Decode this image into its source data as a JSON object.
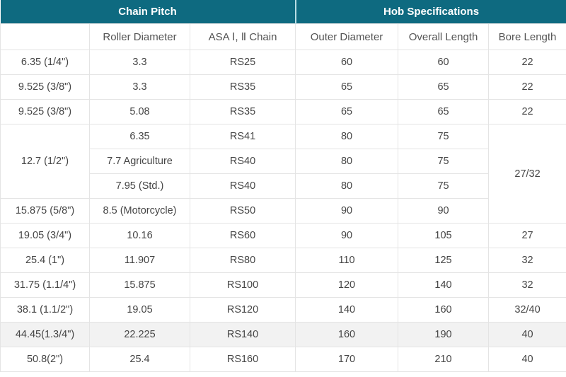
{
  "colors": {
    "header_bg": "#0e6a80",
    "header_text": "#ffffff",
    "header_divider": "#b9dde4",
    "grid_line": "#e4e4e4",
    "bottom_border": "#c9c9c9",
    "subheader_text": "#545454",
    "cell_text": "#454545",
    "highlight_row": "#f2f2f2"
  },
  "table": {
    "header_groups": [
      {
        "label": "Chain Pitch",
        "colspan": 3
      },
      {
        "label": "Hob Specifications",
        "colspan": 3
      }
    ],
    "columns": [
      "",
      "Roller Diameter",
      "ASA Ⅰ, Ⅱ Chain",
      "Outer Diameter",
      "Overall Length",
      "Bore Length"
    ],
    "rows": [
      {
        "cells": [
          {
            "t": "6.35 (1/4\")"
          },
          {
            "t": "3.3"
          },
          {
            "t": "RS25"
          },
          {
            "t": "60"
          },
          {
            "t": "60"
          },
          {
            "t": "22"
          }
        ]
      },
      {
        "cells": [
          {
            "t": "9.525 (3/8\")"
          },
          {
            "t": "3.3"
          },
          {
            "t": "RS35"
          },
          {
            "t": "65"
          },
          {
            "t": "65"
          },
          {
            "t": "22"
          }
        ]
      },
      {
        "cells": [
          {
            "t": "9.525 (3/8\")"
          },
          {
            "t": "5.08"
          },
          {
            "t": "RS35"
          },
          {
            "t": "65"
          },
          {
            "t": "65"
          },
          {
            "t": "22"
          }
        ]
      },
      {
        "cells": [
          {
            "t": "12.7 (1/2\")",
            "rowspan": 3
          },
          {
            "t": "6.35"
          },
          {
            "t": "RS41"
          },
          {
            "t": "80"
          },
          {
            "t": "75"
          },
          {
            "t": "27/32",
            "rowspan": 4
          }
        ]
      },
      {
        "cells": [
          {
            "t": "7.7 Agriculture"
          },
          {
            "t": "RS40"
          },
          {
            "t": "80"
          },
          {
            "t": "75"
          }
        ]
      },
      {
        "cells": [
          {
            "t": "7.95 (Std.)"
          },
          {
            "t": "RS40"
          },
          {
            "t": "80"
          },
          {
            "t": "75"
          }
        ]
      },
      {
        "cells": [
          {
            "t": "15.875 (5/8\")"
          },
          {
            "t": "8.5 (Motorcycle)"
          },
          {
            "t": "RS50"
          },
          {
            "t": "90"
          },
          {
            "t": "90"
          }
        ]
      },
      {
        "cells": [
          {
            "t": "19.05 (3/4\")"
          },
          {
            "t": "10.16"
          },
          {
            "t": "RS60"
          },
          {
            "t": "90"
          },
          {
            "t": "105"
          },
          {
            "t": "27"
          }
        ]
      },
      {
        "cells": [
          {
            "t": "25.4 (1\")"
          },
          {
            "t": "11.907"
          },
          {
            "t": "RS80"
          },
          {
            "t": "110"
          },
          {
            "t": "125"
          },
          {
            "t": "32"
          }
        ]
      },
      {
        "cells": [
          {
            "t": "31.75 (1.1/4\")"
          },
          {
            "t": "15.875"
          },
          {
            "t": "RS100"
          },
          {
            "t": "120"
          },
          {
            "t": "140"
          },
          {
            "t": "32"
          }
        ]
      },
      {
        "cells": [
          {
            "t": "38.1 (1.1/2\")"
          },
          {
            "t": "19.05"
          },
          {
            "t": "RS120"
          },
          {
            "t": "140"
          },
          {
            "t": "160"
          },
          {
            "t": "32/40"
          }
        ]
      },
      {
        "highlight": true,
        "cells": [
          {
            "t": "44.45(1.3/4\")"
          },
          {
            "t": "22.225"
          },
          {
            "t": "RS140"
          },
          {
            "t": "160"
          },
          {
            "t": "190"
          },
          {
            "t": "40"
          }
        ]
      },
      {
        "cells": [
          {
            "t": "50.8(2\")"
          },
          {
            "t": "25.4"
          },
          {
            "t": "RS160"
          },
          {
            "t": "170"
          },
          {
            "t": "210"
          },
          {
            "t": "40"
          }
        ]
      }
    ]
  }
}
